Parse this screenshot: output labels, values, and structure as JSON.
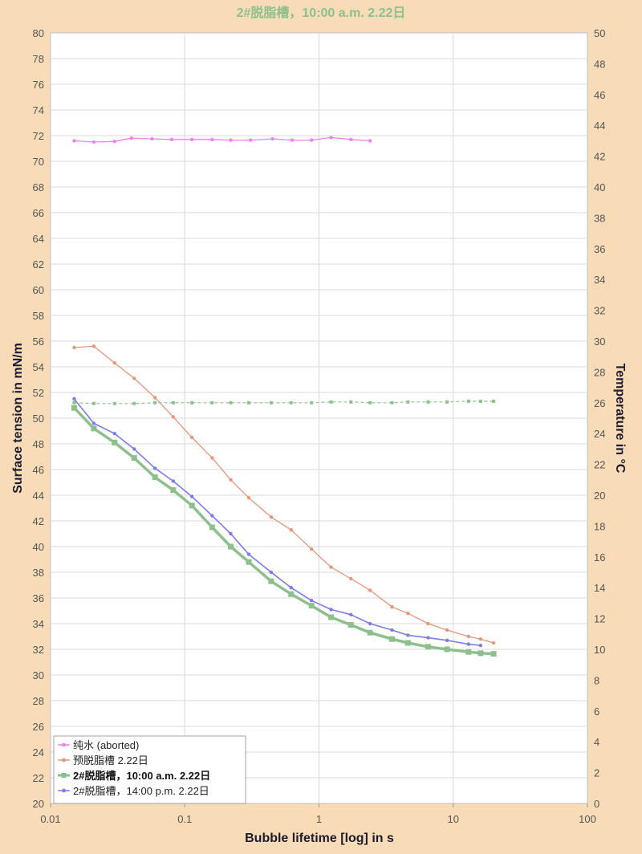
{
  "chart_data": {
    "type": "line",
    "title": "2#脱脂槽，10:00 a.m.  2.22日",
    "xlabel": "Bubble lifetime [log] in s",
    "ylabel": "Surface tension in mN/m",
    "y2label": "Temperature in °C",
    "xscale": "log",
    "xlim": [
      0.01,
      100
    ],
    "ylim": [
      20,
      80
    ],
    "y2lim": [
      0,
      50
    ],
    "x_ticks": [
      "0.01",
      "0.1",
      "1",
      "10",
      "100"
    ],
    "y_step": 2,
    "y2_step": 2,
    "grid": true,
    "legend_position": "bottom-left",
    "colors": {
      "background": "#f8dcb8",
      "plot_area": "#ffffff",
      "gridline": "#d9d9d9",
      "title": "#8dc08d"
    },
    "series": [
      {
        "name": "纯水 (aborted)",
        "color": "#ee82ee",
        "axis": "left",
        "marker": "small-dot",
        "line_width": 1.3,
        "x": [
          0.015,
          0.021,
          0.03,
          0.04,
          0.057,
          0.08,
          0.113,
          0.16,
          0.22,
          0.31,
          0.45,
          0.63,
          0.88,
          1.23,
          1.73,
          2.4
        ],
        "y": [
          71.6,
          71.5,
          71.55,
          71.8,
          71.75,
          71.7,
          71.7,
          71.7,
          71.65,
          71.65,
          71.75,
          71.65,
          71.65,
          71.85,
          71.7,
          71.6
        ]
      },
      {
        "name": "预脱脂槽 2.22日",
        "color": "#e8967a",
        "axis": "left",
        "marker": "small-dot",
        "line_width": 1.3,
        "x": [
          0.015,
          0.021,
          0.03,
          0.042,
          0.06,
          0.082,
          0.113,
          0.16,
          0.22,
          0.3,
          0.44,
          0.62,
          0.88,
          1.23,
          1.73,
          2.4,
          3.5,
          4.6,
          6.5,
          9.0,
          13.0,
          16.0,
          20.0
        ],
        "y": [
          55.5,
          55.6,
          54.3,
          53.1,
          51.6,
          50.1,
          48.5,
          46.9,
          45.2,
          43.8,
          42.3,
          41.3,
          39.8,
          38.4,
          37.5,
          36.6,
          35.3,
          34.8,
          34.0,
          33.5,
          33.0,
          32.8,
          32.5
        ]
      },
      {
        "name": "2#脱脂槽，10:00 a.m.  2.22日",
        "color": "#8dc08d",
        "axis": "left",
        "marker": "square",
        "line_width": 3.5,
        "bold_label": true,
        "x": [
          0.015,
          0.021,
          0.03,
          0.042,
          0.06,
          0.082,
          0.113,
          0.16,
          0.22,
          0.3,
          0.44,
          0.62,
          0.88,
          1.23,
          1.73,
          2.4,
          3.5,
          4.6,
          6.5,
          9.0,
          13.0,
          16.0,
          20.0
        ],
        "y": [
          50.8,
          49.2,
          48.1,
          46.9,
          45.4,
          44.4,
          43.2,
          41.5,
          40.0,
          38.8,
          37.3,
          36.3,
          35.4,
          34.5,
          33.9,
          33.3,
          32.8,
          32.5,
          32.2,
          32.0,
          31.8,
          31.7,
          31.65
        ]
      },
      {
        "name": "2#脱脂槽，14:00 p.m.  2.22日",
        "color": "#7b7bea",
        "axis": "left",
        "marker": "small-dot",
        "line_width": 1.6,
        "x": [
          0.015,
          0.021,
          0.03,
          0.042,
          0.06,
          0.082,
          0.113,
          0.16,
          0.22,
          0.3,
          0.44,
          0.62,
          0.88,
          1.23,
          1.73,
          2.4,
          3.5,
          4.6,
          6.5,
          9.0,
          13.0,
          16.0
        ],
        "y": [
          51.5,
          49.6,
          48.8,
          47.6,
          46.1,
          45.1,
          43.9,
          42.4,
          41.0,
          39.4,
          38.0,
          36.8,
          35.8,
          35.1,
          34.7,
          34.0,
          33.5,
          33.1,
          32.9,
          32.7,
          32.4,
          32.3
        ]
      },
      {
        "name": "",
        "color": "#8dc08d",
        "axis": "right",
        "marker": "tiny-square",
        "line_width": 1.2,
        "dashed": true,
        "x": [
          0.015,
          0.021,
          0.03,
          0.042,
          0.06,
          0.082,
          0.113,
          0.16,
          0.22,
          0.3,
          0.44,
          0.62,
          0.88,
          1.23,
          1.73,
          2.4,
          3.5,
          4.6,
          6.5,
          9.0,
          13.0,
          16.0,
          20.0
        ],
        "y": [
          26.0,
          25.95,
          25.95,
          25.95,
          26.0,
          26.0,
          26.0,
          26.0,
          26.0,
          26.0,
          26.0,
          26.0,
          26.0,
          26.05,
          26.05,
          26.0,
          26.0,
          26.05,
          26.05,
          26.05,
          26.1,
          26.1,
          26.1
        ]
      }
    ]
  }
}
